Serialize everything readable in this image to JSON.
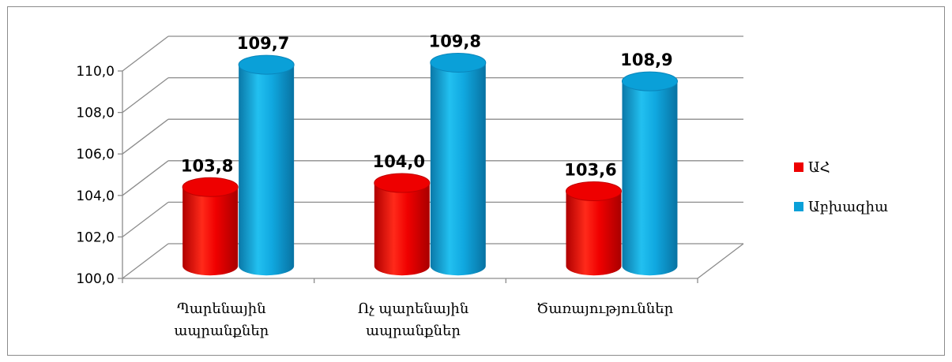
{
  "chart_data": {
    "type": "bar",
    "style": "3d-cylinder",
    "categories": [
      [
        "Պարենային",
        "ապրանքներ"
      ],
      [
        "Ոչ պարենային",
        "ապրանքներ"
      ],
      [
        "Ծառայություններ"
      ]
    ],
    "series": [
      {
        "name": "ԱՀ",
        "values": [
          103.8,
          104.0,
          103.6
        ],
        "labels": [
          "103,8",
          "104,0",
          "103,6"
        ],
        "color": "#ee0000"
      },
      {
        "name": "Աբխազիա",
        "values": [
          109.7,
          109.8,
          108.9
        ],
        "labels": [
          "109,7",
          "109,8",
          "108,9"
        ],
        "color": "#0aa0d8"
      }
    ],
    "ylim": [
      100,
      110
    ],
    "yticks": [
      "100,0",
      "102,0",
      "104,0",
      "106,0",
      "108,0",
      "110,0"
    ],
    "grid": true,
    "legend": "right"
  }
}
